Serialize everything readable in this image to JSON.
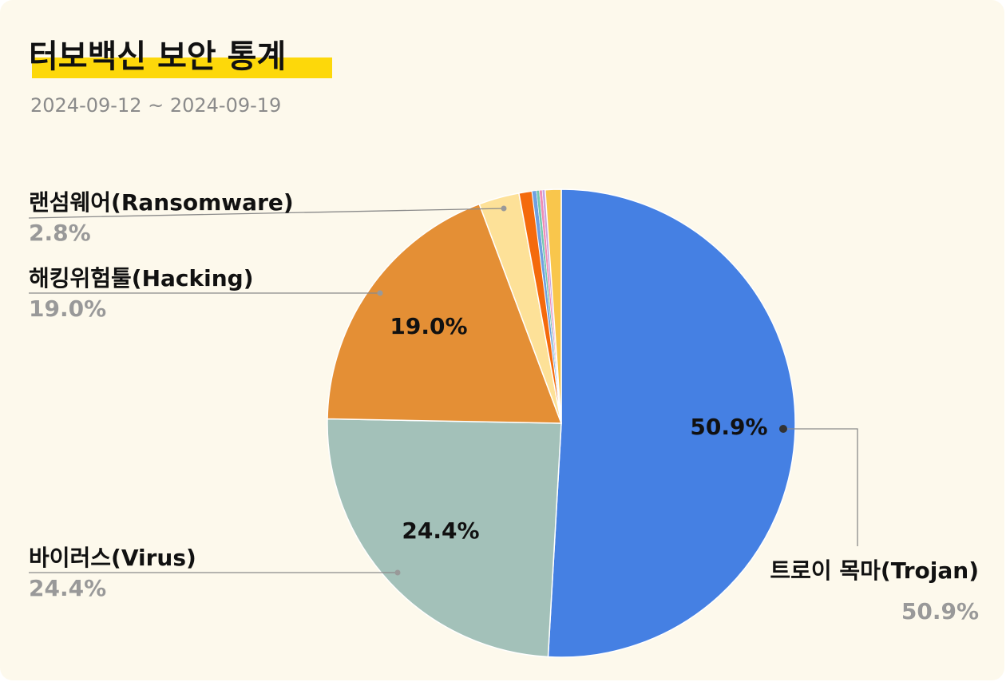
{
  "header": {
    "title": "터보백신 보안 통계",
    "date_range": "2024-09-12 ~ 2024-09-19"
  },
  "colors": {
    "background": "#fdf9ec",
    "title_highlight": "#fdd80a",
    "leader_line": "#8a8a8a",
    "legend_name": "#111111",
    "legend_value": "#999999"
  },
  "chart_data": {
    "type": "pie",
    "start_angle_deg": 0,
    "direction": "clockwise",
    "slices": [
      {
        "label": "트로이 목마(Trojan)",
        "value": 50.9,
        "display": "50.9%",
        "color": "#4580e3",
        "inside_label": "50.9%",
        "legend_side": "right"
      },
      {
        "label": "바이러스(Virus)",
        "value": 24.4,
        "display": "24.4%",
        "color": "#a3c1b9",
        "inside_label": "24.4%",
        "legend_side": "left"
      },
      {
        "label": "해킹위험툴(Hacking)",
        "value": 19.0,
        "display": "19.0%",
        "color": "#e48f35",
        "inside_label": "19.0%",
        "legend_side": "left"
      },
      {
        "label": "랜섬웨어(Ransomware)",
        "value": 2.8,
        "display": "2.8%",
        "color": "#fde198",
        "inside_label": "",
        "legend_side": "left"
      },
      {
        "label": "",
        "value": 0.9,
        "display": "",
        "color": "#f46a0c",
        "inside_label": ""
      },
      {
        "label": "",
        "value": 0.3,
        "display": "",
        "color": "#6fa0e0",
        "inside_label": ""
      },
      {
        "label": "",
        "value": 0.2,
        "display": "",
        "color": "#74c7b0",
        "inside_label": ""
      },
      {
        "label": "",
        "value": 0.2,
        "display": "",
        "color": "#f08db5",
        "inside_label": ""
      },
      {
        "label": "",
        "value": 0.2,
        "display": "",
        "color": "#c5a5e0",
        "inside_label": ""
      },
      {
        "label": "",
        "value": 1.1,
        "display": "",
        "color": "#f9c64c",
        "inside_label": ""
      }
    ]
  }
}
